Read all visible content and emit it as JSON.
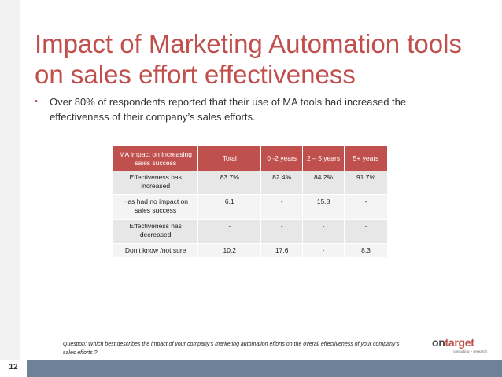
{
  "slide": {
    "title": "Impact of Marketing Automation tools on sales effort effectiveness",
    "bullet": "Over 80% of respondents reported that their use of MA tools had increased the effectiveness of their company’s sales efforts.",
    "bullet_marker": "•",
    "page_number": "12"
  },
  "table": {
    "headers": [
      "MA impact on increasing sales success",
      "Total",
      "0 -2 years",
      "2 – 5 years",
      "5+ years"
    ],
    "rows": [
      [
        "Effectiveness has increased",
        "83.7%",
        "82.4%",
        "84.2%",
        "91.7%"
      ],
      [
        "Has had no impact on sales success",
        "6.1",
        "-",
        "15.8",
        "-"
      ],
      [
        "Effectiveness has decreased",
        "-",
        "-",
        "-",
        "-"
      ],
      [
        "Don’t know /not sure",
        "10.2",
        "17.6",
        "-",
        "8.3"
      ]
    ]
  },
  "footnote": "Question:  Which best describes the impact of your company’s marketing automation efforts on the overall effectiveness of  your company’s sales efforts ?",
  "logo": {
    "word_on": "on",
    "word_target": "target",
    "tagline": "consulting + research"
  },
  "colors": {
    "accent": "#c0504d",
    "bottom_bar": "#6d8199"
  }
}
